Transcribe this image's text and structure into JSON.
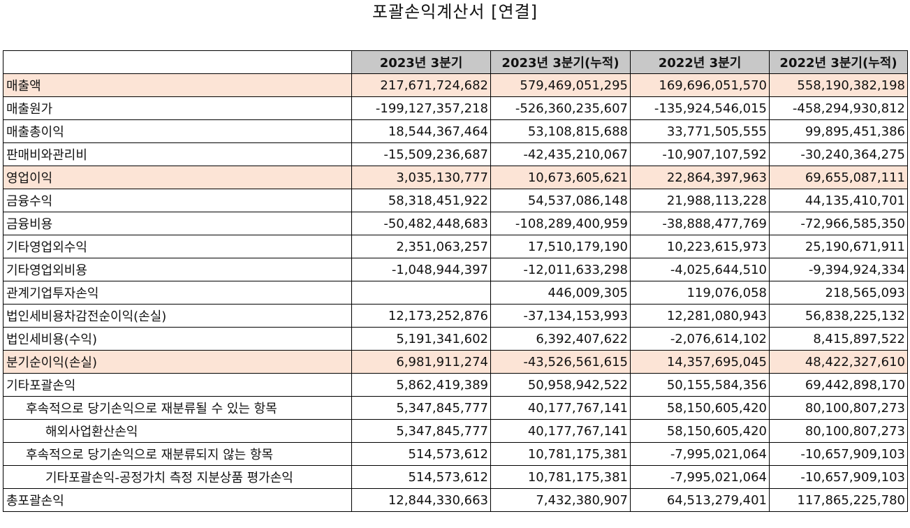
{
  "title": "포괄손익계산서 [연결]",
  "columns": [
    "2023년 3분기",
    "2023년 3분기(누적)",
    "2022년 3분기",
    "2022년 3분기(누적)"
  ],
  "highlight_color": "#fce4d6",
  "header_color": "#c8c8c8",
  "rows": [
    {
      "label": "매출액",
      "indent": 0,
      "highlight": true,
      "values": [
        "217,671,724,682",
        "579,469,051,295",
        "169,696,051,570",
        "558,190,382,198"
      ]
    },
    {
      "label": "매출원가",
      "indent": 0,
      "highlight": false,
      "values": [
        "-199,127,357,218",
        "-526,360,235,607",
        "-135,924,546,015",
        "-458,294,930,812"
      ]
    },
    {
      "label": "매출총이익",
      "indent": 0,
      "highlight": false,
      "values": [
        "18,544,367,464",
        "53,108,815,688",
        "33,771,505,555",
        "99,895,451,386"
      ]
    },
    {
      "label": "판매비와관리비",
      "indent": 0,
      "highlight": false,
      "values": [
        "-15,509,236,687",
        "-42,435,210,067",
        "-10,907,107,592",
        "-30,240,364,275"
      ]
    },
    {
      "label": "영업이익",
      "indent": 0,
      "highlight": true,
      "values": [
        "3,035,130,777",
        "10,673,605,621",
        "22,864,397,963",
        "69,655,087,111"
      ]
    },
    {
      "label": "금융수익",
      "indent": 0,
      "highlight": false,
      "values": [
        "58,318,451,922",
        "54,537,086,148",
        "21,988,113,228",
        "44,135,410,701"
      ]
    },
    {
      "label": "금융비용",
      "indent": 0,
      "highlight": false,
      "values": [
        "-50,482,448,683",
        "-108,289,400,959",
        "-38,888,477,769",
        "-72,966,585,350"
      ]
    },
    {
      "label": "기타영업외수익",
      "indent": 0,
      "highlight": false,
      "values": [
        "2,351,063,257",
        "17,510,179,190",
        "10,223,615,973",
        "25,190,671,911"
      ]
    },
    {
      "label": "기타영업외비용",
      "indent": 0,
      "highlight": false,
      "values": [
        "-1,048,944,397",
        "-12,011,633,298",
        "-4,025,644,510",
        "-9,394,924,334"
      ]
    },
    {
      "label": "관계기업투자손익",
      "indent": 0,
      "highlight": false,
      "values": [
        "",
        "446,009,305",
        "119,076,058",
        "218,565,093"
      ]
    },
    {
      "label": "법인세비용차감전순이익(손실)",
      "indent": 0,
      "highlight": false,
      "values": [
        "12,173,252,876",
        "-37,134,153,993",
        "12,281,080,943",
        "56,838,225,132"
      ]
    },
    {
      "label": "법인세비용(수익)",
      "indent": 0,
      "highlight": false,
      "values": [
        "5,191,341,602",
        "6,392,407,622",
        "-2,076,614,102",
        "8,415,897,522"
      ]
    },
    {
      "label": "분기순이익(손실)",
      "indent": 0,
      "highlight": true,
      "values": [
        "6,981,911,274",
        "-43,526,561,615",
        "14,357,695,045",
        "48,422,327,610"
      ]
    },
    {
      "label": "기타포괄손익",
      "indent": 0,
      "highlight": false,
      "values": [
        "5,862,419,389",
        "50,958,942,522",
        "50,155,584,356",
        "69,442,898,170"
      ]
    },
    {
      "label": "후속적으로 당기손익으로 재분류될 수 있는 항목",
      "indent": 1,
      "highlight": false,
      "values": [
        "5,347,845,777",
        "40,177,767,141",
        "58,150,605,420",
        "80,100,807,273"
      ]
    },
    {
      "label": "해외사업환산손익",
      "indent": 2,
      "highlight": false,
      "values": [
        "5,347,845,777",
        "40,177,767,141",
        "58,150,605,420",
        "80,100,807,273"
      ]
    },
    {
      "label": "후속적으로 당기손익으로 재분류되지 않는 항목",
      "indent": 1,
      "highlight": false,
      "values": [
        "514,573,612",
        "10,781,175,381",
        "-7,995,021,064",
        "-10,657,909,103"
      ]
    },
    {
      "label": "기타포괄손익-공정가치 측정 지분상품 평가손익",
      "indent": 2,
      "highlight": false,
      "values": [
        "514,573,612",
        "10,781,175,381",
        "-7,995,021,064",
        "-10,657,909,103"
      ]
    },
    {
      "label": "총포괄손익",
      "indent": 0,
      "highlight": false,
      "values": [
        "12,844,330,663",
        "7,432,380,907",
        "64,513,279,401",
        "117,865,225,780"
      ]
    }
  ]
}
